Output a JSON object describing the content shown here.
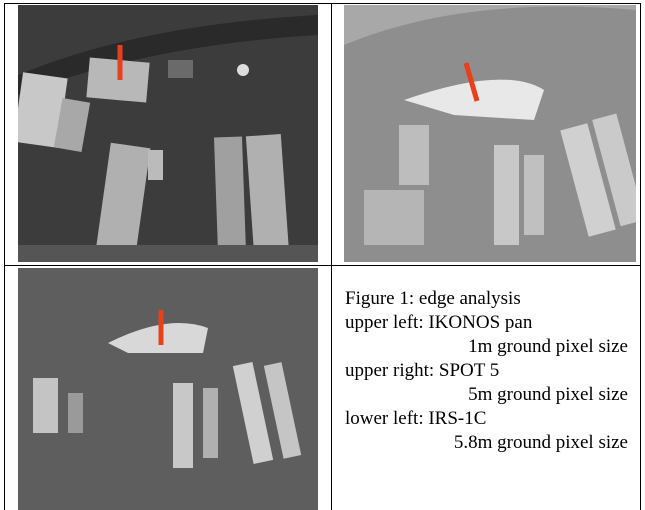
{
  "figure": {
    "caption": {
      "title": "Figure 1: edge analysis",
      "items": [
        {
          "label": "upper left: IKONOS pan",
          "detail": "1m ground pixel size"
        },
        {
          "label": "upper right: SPOT 5",
          "detail": "5m ground pixel size"
        },
        {
          "label": "lower left: IRS-1C",
          "detail": "5.8m ground pixel size"
        }
      ]
    }
  }
}
